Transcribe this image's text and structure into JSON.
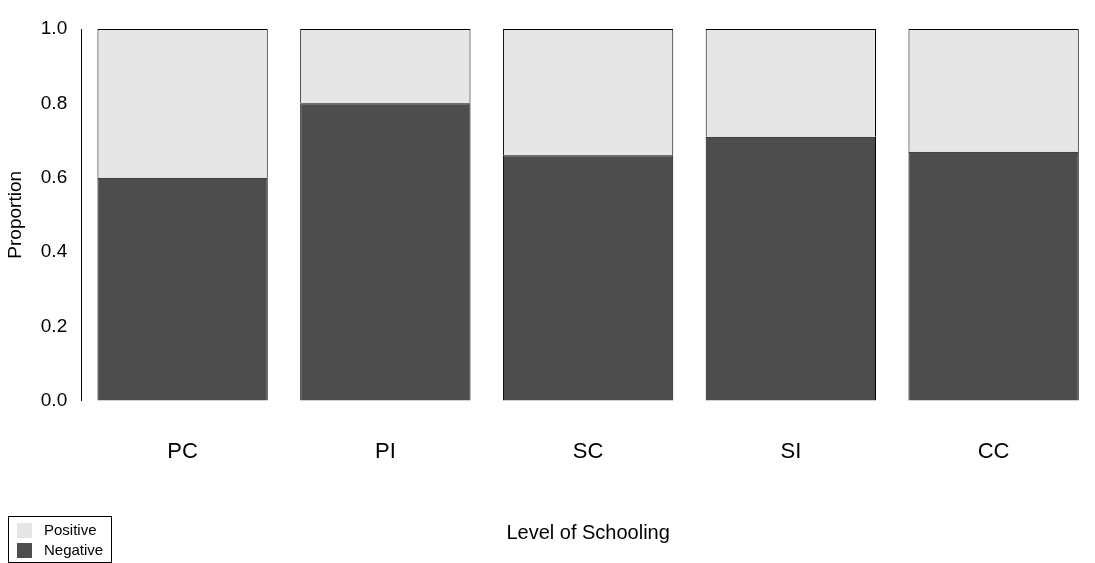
{
  "chart_data": {
    "type": "bar",
    "stacked": true,
    "xlabel": "Level of Schooling",
    "ylabel": "Proportion",
    "categories": [
      "PC",
      "PI",
      "SC",
      "SI",
      "CC"
    ],
    "series": [
      {
        "name": "Negative",
        "color": "#4d4d4d",
        "values": [
          0.6,
          0.8,
          0.66,
          0.71,
          0.67
        ]
      },
      {
        "name": "Positive",
        "color": "#e6e6e6",
        "values": [
          0.4,
          0.2,
          0.34,
          0.29,
          0.33
        ]
      }
    ],
    "ylim": [
      0,
      1
    ],
    "yticks": [
      {
        "value": 0,
        "label": "0.0"
      },
      0.2,
      0.4,
      0.6,
      0.8,
      {
        "value": 1,
        "label": "1.0"
      }
    ],
    "grid": false,
    "legend": "bottom left"
  }
}
